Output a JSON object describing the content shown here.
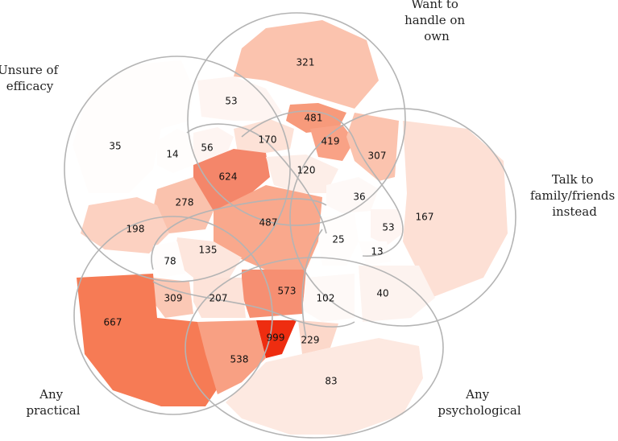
{
  "diagram": {
    "type": "venn",
    "sets": [
      {
        "id": "unsure",
        "label_lines": [
          "Unsure of",
          "efficacy"
        ]
      },
      {
        "id": "handle",
        "label_lines": [
          "Want to",
          "handle on",
          "own"
        ]
      },
      {
        "id": "talk",
        "label_lines": [
          "Talk to",
          "family/friends",
          "instead"
        ]
      },
      {
        "id": "psych",
        "label_lines": [
          "Any",
          "psychological"
        ]
      },
      {
        "id": "practical",
        "label_lines": [
          "Any",
          "practical"
        ]
      }
    ],
    "region_counts": [
      {
        "value": "321",
        "fill": "#fbc3ae"
      },
      {
        "value": "53",
        "fill": "#fef5f2"
      },
      {
        "value": "481",
        "fill": "#f79a7b"
      },
      {
        "value": "35",
        "fill": "#fffdfc"
      },
      {
        "value": "14",
        "fill": "#fffdfc"
      },
      {
        "value": "56",
        "fill": "#fef5f2"
      },
      {
        "value": "170",
        "fill": "#fde2d7"
      },
      {
        "value": "419",
        "fill": "#f9a286"
      },
      {
        "value": "307",
        "fill": "#fbc3ae"
      },
      {
        "value": "624",
        "fill": "#f4866a"
      },
      {
        "value": "120",
        "fill": "#fdeee8"
      },
      {
        "value": "278",
        "fill": "#fac2ad"
      },
      {
        "value": "36",
        "fill": "#fef9f7"
      },
      {
        "value": "167",
        "fill": "#fde0d5"
      },
      {
        "value": "487",
        "fill": "#f9a88c"
      },
      {
        "value": "198",
        "fill": "#fcd1c1"
      },
      {
        "value": "25",
        "fill": "#fffdfc"
      },
      {
        "value": "53",
        "fill": "#fef5f2"
      },
      {
        "value": "13",
        "fill": "#fffdfc"
      },
      {
        "value": "135",
        "fill": "#fde6dd"
      },
      {
        "value": "78",
        "fill": "#fffdfc"
      },
      {
        "value": "573",
        "fill": "#f68f72"
      },
      {
        "value": "309",
        "fill": "#fbc8b5"
      },
      {
        "value": "207",
        "fill": "#fde3d9"
      },
      {
        "value": "102",
        "fill": "#fef9f7"
      },
      {
        "value": "40",
        "fill": "#fdf3ef"
      },
      {
        "value": "667",
        "fill": "#f67b55"
      },
      {
        "value": "999",
        "fill": "#ee2d10"
      },
      {
        "value": "229",
        "fill": "#fcd8ca"
      },
      {
        "value": "538",
        "fill": "#f8a083"
      },
      {
        "value": "83",
        "fill": "#fde9e1"
      }
    ]
  }
}
